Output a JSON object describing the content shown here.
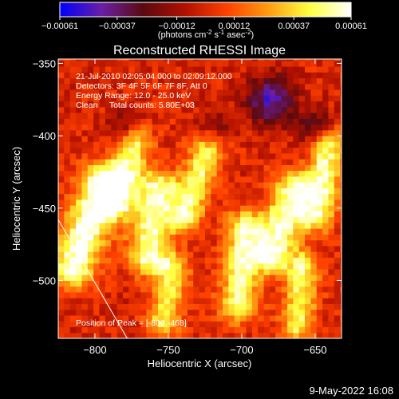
{
  "chart_data": {
    "type": "heatmap",
    "title": "Reconstructed RHESSI Image",
    "colorbar": {
      "ticks": [
        "-0.00061",
        "-0.00037",
        "-0.00012",
        "0.00012",
        "0.00037",
        "0.00061"
      ],
      "range": [
        -0.00061,
        0.00061
      ],
      "unit_label": "(photons cm",
      "unit_sup1": "-2",
      "unit_mid": " s",
      "unit_sup2": "-1",
      "unit_end": " asec",
      "unit_sup3": "-2",
      "unit_close": ")",
      "colors": [
        "#0000ff",
        "#6a1fa6",
        "#5a0a10",
        "#b01000",
        "#ff4000",
        "#ff9a10",
        "#ffff40",
        "#ffffff"
      ]
    },
    "xlabel": "Heliocentric X (arcsec)",
    "ylabel": "Heliocentric Y (arcsec)",
    "xlim": [
      -825,
      -632
    ],
    "ylim": [
      -540,
      -347
    ],
    "xticks": [
      -800,
      -750,
      -700,
      -650
    ],
    "yticks": [
      -500,
      -450,
      -400,
      -350
    ],
    "xtick_labels": [
      "−800",
      "−750",
      "−700",
      "−650"
    ],
    "ytick_labels": [
      "−500",
      "−450",
      "−400",
      "−350"
    ],
    "annotations": [
      "21-Jul-2010 02:05:04.000 to 02:09:12.000",
      "Detectors: 3F 4F 5F 6F 7F 8F, Att 0",
      "Energy Range: 12.0 - 25.0 keV",
      "Clean     Total counts: 5.80E+03"
    ],
    "peak_label": "Position of Peak = [-800,-468]",
    "limb_line": [
      [
        -825,
        -458
      ],
      [
        -778,
        -540
      ]
    ],
    "grid": false,
    "ridges": [
      {
        "x": -805,
        "y": -462,
        "angle": -20,
        "half_len": 32,
        "width": 11,
        "value": 0.00061
      },
      {
        "x": -780,
        "y": -425,
        "angle": -15,
        "half_len": 22,
        "width": 9,
        "value": 0.00052
      },
      {
        "x": -760,
        "y": -460,
        "angle": -10,
        "half_len": 25,
        "width": 10,
        "value": 0.00055
      },
      {
        "x": -730,
        "y": -430,
        "angle": -18,
        "half_len": 25,
        "width": 8,
        "value": 0.00048
      },
      {
        "x": -700,
        "y": -490,
        "angle": -5,
        "half_len": 28,
        "width": 9,
        "value": 0.0005
      },
      {
        "x": -672,
        "y": -460,
        "angle": -20,
        "half_len": 25,
        "width": 10,
        "value": 0.00057
      },
      {
        "x": -645,
        "y": -430,
        "angle": -8,
        "half_len": 25,
        "width": 8,
        "value": 0.00052
      },
      {
        "x": -750,
        "y": -510,
        "angle": -10,
        "half_len": 18,
        "width": 8,
        "value": 0.00042
      },
      {
        "x": -660,
        "y": -510,
        "angle": -5,
        "half_len": 20,
        "width": 8,
        "value": 0.00045
      }
    ],
    "blue_patches": [
      {
        "x": -680,
        "y": -375,
        "r": 12,
        "value": -0.00045
      },
      {
        "x": -780,
        "y": -395,
        "r": 8,
        "value": -0.00028
      },
      {
        "x": -720,
        "y": -397,
        "r": 8,
        "value": -0.0003
      },
      {
        "x": -650,
        "y": -395,
        "r": 9,
        "value": -0.00032
      }
    ]
  },
  "footer_date": "9-May-2022 16:08"
}
